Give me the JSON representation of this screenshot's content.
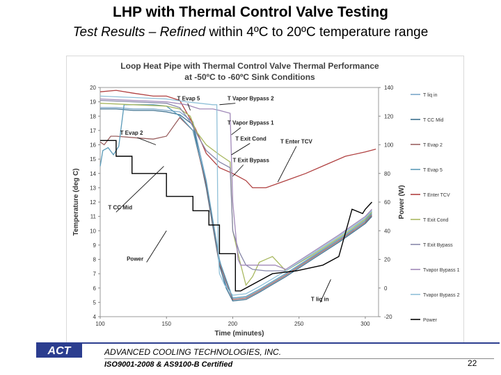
{
  "slide": {
    "title": "LHP with Thermal Control Valve Testing",
    "subtitle_italic": "Test Results – Refined",
    "subtitle_rest": "within 4ºC to 20ºC temperature range"
  },
  "footer": {
    "logo_text": "ACT",
    "company": "ADVANCED COOLING TECHNOLOGIES, INC.",
    "certification": "ISO9001-2008 & AS9100-B Certified",
    "page_number": "22"
  },
  "colors": {
    "T_liq_in": "#7aa6c8",
    "T_CC_Mid": "#3b6f8e",
    "T_Evap_2": "#9a6060",
    "T_Evap_5": "#5a9ab8",
    "T_Enter_TCV": "#b04040",
    "T_Exit_Cond": "#a8b860",
    "T_Exit_Bypass": "#8888aa",
    "T_Vapor_Bypass_1": "#a088b8",
    "T_Vapor_Bypass_2": "#90c0d8",
    "Power": "#000000"
  },
  "chart_data": {
    "type": "line",
    "title": "Loop Heat Pipe with Thermal Control Valve Thermal Performance",
    "subtitle": "at -50ºC to -60ºC Sink Conditions",
    "xlabel": "Time (minutes)",
    "ylabel": "Temperature (deg C)",
    "y2label": "Power (W)",
    "xlim": [
      100,
      310
    ],
    "ylim": [
      4,
      20
    ],
    "y2lim": [
      -20,
      140
    ],
    "x_ticks": [
      100,
      150,
      200,
      250,
      300
    ],
    "y_ticks": [
      4,
      5,
      6,
      7,
      8,
      9,
      10,
      11,
      12,
      13,
      14,
      15,
      16,
      17,
      18,
      19,
      20
    ],
    "y2_ticks": [
      -20,
      0,
      20,
      40,
      60,
      80,
      100,
      120,
      140
    ],
    "legend": [
      {
        "key": "T_liq_in",
        "label": "T liq in"
      },
      {
        "key": "T_CC_Mid",
        "label": "T CC Mid"
      },
      {
        "key": "T_Evap_2",
        "label": "T Evap 2"
      },
      {
        "key": "T_Evap_5",
        "label": "T Evap 5"
      },
      {
        "key": "T_Enter_TCV",
        "label": "T Enter TCV"
      },
      {
        "key": "T_Exit_Cond",
        "label": "T Exit Cond"
      },
      {
        "key": "T_Exit_Bypass",
        "label": "T Exit Bypass"
      },
      {
        "key": "T_Vapor_Bypass_1",
        "label": "Tvapor Bypass 1"
      },
      {
        "key": "T_Vapor_Bypass_2",
        "label": "Tvapor Bypass 2"
      },
      {
        "key": "Power",
        "label": "Power"
      }
    ],
    "annotations": [
      {
        "text": "T Evap 5",
        "x": 158,
        "y": 19.1
      },
      {
        "text": "T Vapor Bypass 2",
        "x": 196,
        "y": 19.1
      },
      {
        "text": "T Vapor Bypass 1",
        "x": 196,
        "y": 17.4
      },
      {
        "text": "T Evap 2",
        "x": 115,
        "y": 16.7
      },
      {
        "text": "T Exit Cond",
        "x": 202,
        "y": 16.3
      },
      {
        "text": "T Enter TCV",
        "x": 236,
        "y": 16.1
      },
      {
        "text": "T Exit Bypass",
        "x": 200,
        "y": 14.8
      },
      {
        "text": "T CC Mid",
        "x": 106,
        "y": 11.5
      },
      {
        "text": "Power",
        "x": 120,
        "y": 7.9
      },
      {
        "text": "T liq in",
        "x": 259,
        "y": 5.1
      }
    ],
    "series": [
      {
        "key": "T_liq_in",
        "axis": "left",
        "x": [
          100,
          112,
          125,
          140,
          150,
          160,
          170,
          180,
          190,
          195,
          200,
          210,
          220,
          240,
          260,
          280,
          300,
          305
        ],
        "y": [
          18.6,
          18.6,
          18.5,
          18.5,
          18.4,
          18.3,
          17.6,
          13.5,
          8.0,
          6.2,
          5.3,
          5.4,
          5.9,
          7.0,
          8.2,
          9.4,
          10.7,
          11.3
        ]
      },
      {
        "key": "T_CC_Mid",
        "axis": "left",
        "x": [
          100,
          112,
          125,
          140,
          150,
          160,
          170,
          180,
          190,
          195,
          200,
          210,
          220,
          240,
          260,
          280,
          300,
          305
        ],
        "y": [
          18.5,
          18.5,
          18.4,
          18.4,
          18.3,
          18.1,
          17.4,
          13.0,
          7.6,
          6.0,
          5.1,
          5.2,
          5.7,
          6.8,
          8.0,
          9.2,
          10.5,
          11.0
        ]
      },
      {
        "key": "T_Evap_2",
        "axis": "left",
        "x": [
          100,
          103,
          108,
          112,
          125,
          140,
          150,
          160,
          170,
          180,
          190,
          200,
          210,
          220,
          240,
          260,
          280,
          300,
          305
        ],
        "y": [
          16.2,
          16.0,
          16.6,
          16.6,
          16.5,
          16.4,
          16.6,
          17.9,
          17.0,
          13.2,
          7.7,
          5.2,
          5.3,
          5.8,
          6.9,
          8.1,
          9.3,
          10.6,
          11.1
        ]
      },
      {
        "key": "T_Evap_5",
        "axis": "left",
        "x": [
          100,
          102,
          106,
          110,
          114,
          118,
          140,
          150,
          160,
          170,
          180,
          190,
          200,
          210,
          220,
          240,
          260,
          280,
          300,
          305
        ],
        "y": [
          14.5,
          15.6,
          15.8,
          15.3,
          15.9,
          18.8,
          18.8,
          18.7,
          18.0,
          17.0,
          13.4,
          7.9,
          5.3,
          5.4,
          5.9,
          7.0,
          8.2,
          9.4,
          10.7,
          11.2
        ]
      },
      {
        "key": "T_Enter_TCV",
        "axis": "left",
        "x": [
          100,
          112,
          125,
          140,
          150,
          160,
          168,
          172,
          180,
          190,
          200,
          210,
          215,
          225,
          240,
          255,
          270,
          285,
          300,
          308
        ],
        "y": [
          19.7,
          19.8,
          19.6,
          19.4,
          19.4,
          19.1,
          17.8,
          17.1,
          15.4,
          14.4,
          14.0,
          13.5,
          13.0,
          13.0,
          13.5,
          14.0,
          14.6,
          15.2,
          15.5,
          15.7
        ]
      },
      {
        "key": "T_Exit_Cond",
        "axis": "left",
        "x": [
          100,
          125,
          150,
          160,
          168,
          172,
          180,
          190,
          198,
          200,
          205,
          210,
          215,
          220,
          230,
          240,
          260,
          280,
          300,
          305
        ],
        "y": [
          18.9,
          18.8,
          18.7,
          18.5,
          18.0,
          17.0,
          16.0,
          15.3,
          14.8,
          10.0,
          8.0,
          6.2,
          6.8,
          7.8,
          8.2,
          7.2,
          8.3,
          9.5,
          10.8,
          11.3
        ]
      },
      {
        "key": "T_Exit_Bypass",
        "axis": "left",
        "x": [
          100,
          125,
          150,
          160,
          168,
          175,
          180,
          190,
          198,
          200,
          205,
          210,
          215,
          225,
          240,
          260,
          280,
          300,
          305
        ],
        "y": [
          19.1,
          19.0,
          18.9,
          18.6,
          17.6,
          16.4,
          15.6,
          14.8,
          14.4,
          10.0,
          8.5,
          7.6,
          7.3,
          7.2,
          7.2,
          8.4,
          9.6,
          10.9,
          11.4
        ]
      },
      {
        "key": "T_Vapor_Bypass_1",
        "axis": "left",
        "x": [
          100,
          125,
          150,
          165,
          175,
          185,
          190,
          198,
          200,
          204,
          206,
          210,
          220,
          232,
          240,
          260,
          280,
          300,
          305
        ],
        "y": [
          19.2,
          19.1,
          19.0,
          18.8,
          18.5,
          18.5,
          18.4,
          18.2,
          12.0,
          8.0,
          7.6,
          7.6,
          7.6,
          7.6,
          7.3,
          8.5,
          9.7,
          11.0,
          11.5
        ]
      },
      {
        "key": "T_Vapor_Bypass_2",
        "axis": "left",
        "x": [
          100,
          125,
          150,
          165,
          175,
          185,
          188,
          189,
          190,
          194,
          200,
          210,
          220,
          240,
          260,
          280,
          300,
          305
        ],
        "y": [
          19.4,
          19.3,
          19.2,
          19.0,
          18.9,
          18.8,
          18.8,
          8.5,
          7.0,
          6.2,
          5.5,
          5.6,
          6.1,
          7.2,
          8.4,
          9.6,
          10.9,
          11.4
        ]
      },
      {
        "key": "Power",
        "axis": "right",
        "x": [
          100,
          112,
          112,
          124,
          124,
          150,
          150,
          170,
          170,
          182,
          182,
          190,
          190,
          202,
          202,
          206,
          206,
          230,
          230,
          248,
          248,
          268,
          268,
          280,
          280,
          290,
          290,
          298,
          298,
          300,
          305
        ],
        "y": [
          103,
          103,
          92,
          92,
          80,
          80,
          64,
          64,
          54,
          54,
          44,
          44,
          24,
          24,
          -2,
          -2,
          -2,
          10,
          10,
          12,
          12,
          16,
          16,
          22,
          22,
          55,
          55,
          52,
          52,
          55,
          60
        ]
      }
    ]
  }
}
